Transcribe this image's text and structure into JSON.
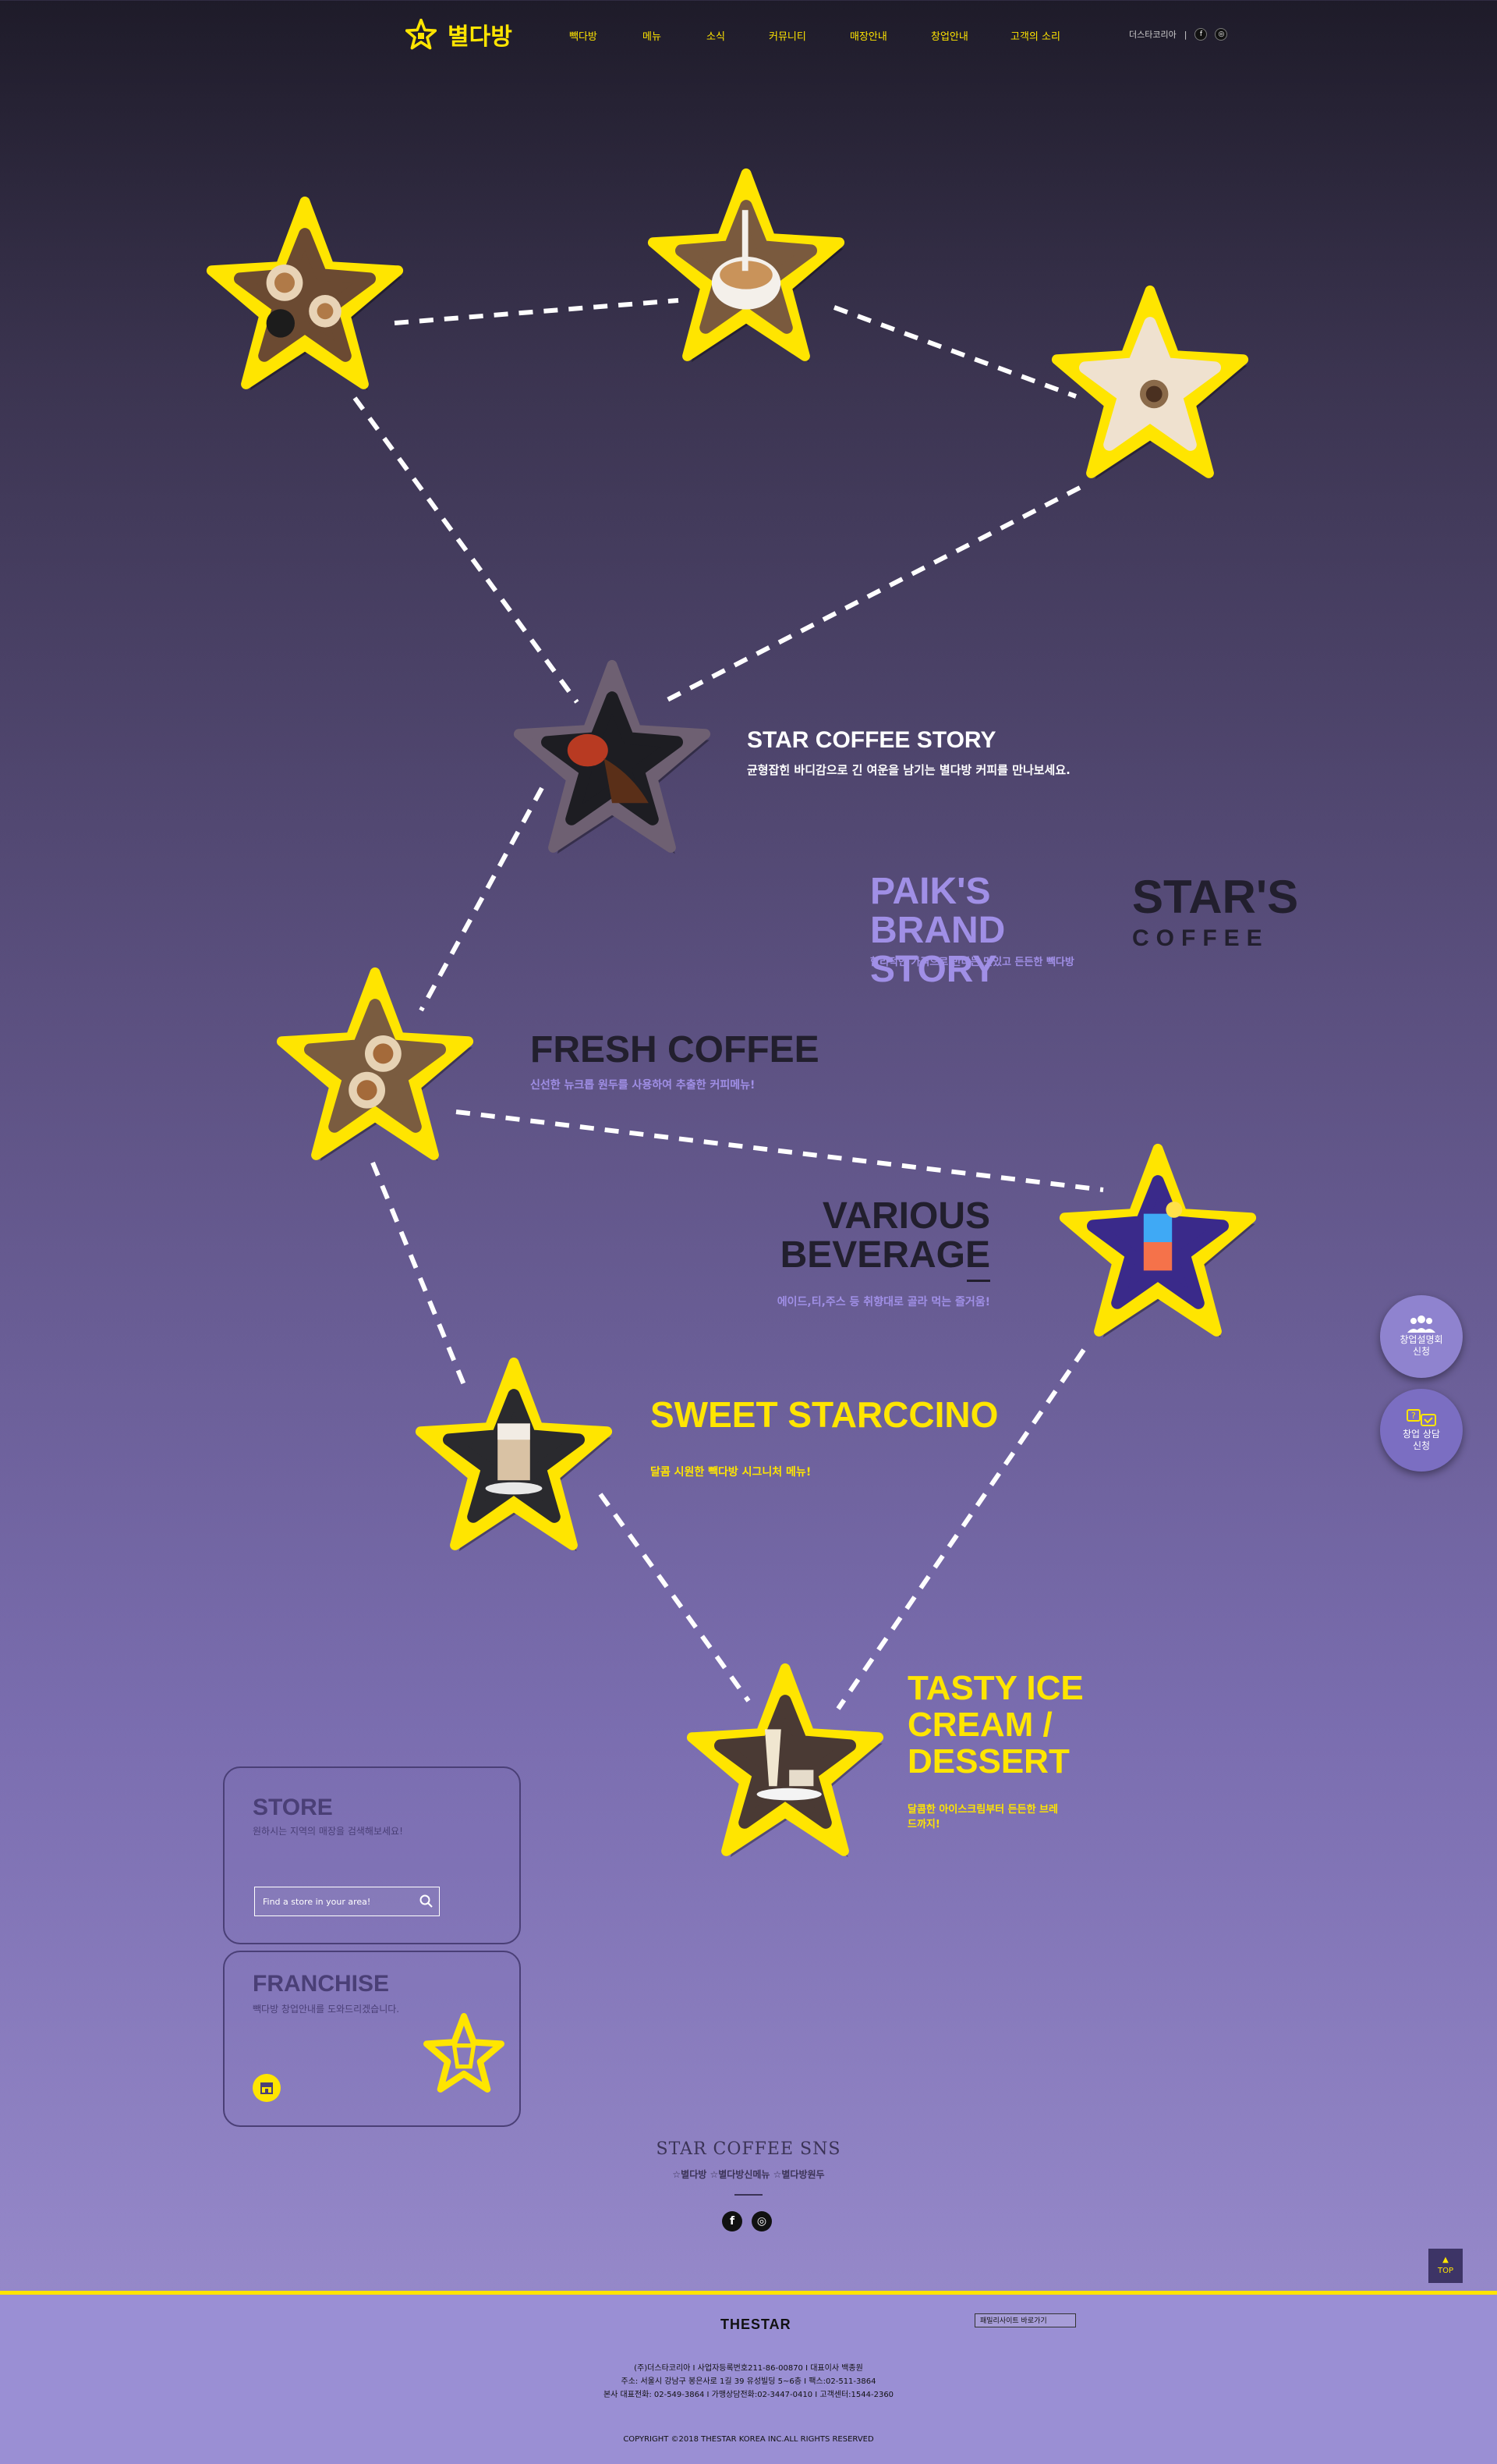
{
  "header": {
    "logo_text": "별다방",
    "nav": [
      "빽다방",
      "메뉴",
      "소식",
      "커뮤니티",
      "매장안내",
      "창업안내",
      "고객의 소리"
    ],
    "util_link": "더스타코리아",
    "util_sep": "|",
    "facebook_glyph": "f",
    "instagram_glyph": "◎"
  },
  "sections": {
    "story": {
      "title": "STAR COFFEE STORY",
      "subtitle": "균형잡힌 바디감으로 긴 여운을 남기는 별다방 커피를 만나보세요."
    },
    "brand": {
      "title": "PAIK'S BRAND STORY",
      "subtitle": "합리적인 가격으로 만나는 맛있고 든든한 빽다방",
      "logo_big": "STAR'S",
      "logo_small": "COFFEE"
    },
    "fresh": {
      "title": "FRESH COFFEE",
      "subtitle": "신선한 뉴크롭 원두를 사용하여 추출한 커피메뉴!"
    },
    "beverage": {
      "title": "VARIOUS BEVERAGE",
      "subtitle": "에이드,티,주스 등 취향대로 골라 먹는 즐거움!"
    },
    "sweet": {
      "title": "SWEET STARCCINO",
      "subtitle": "달콤 시원한 빽다방 시그니처 메뉴!"
    },
    "tasty": {
      "title": "TASTY ICE CREAM / DESSERT",
      "subtitle": "달콤한 아이스크림부터 든든한 브레드까지!"
    }
  },
  "side_buttons": {
    "info_session": "창업설명회 신청",
    "consult": "창업 상담 신청"
  },
  "store": {
    "title": "STORE",
    "subtitle": "원하시는 지역의 매장을 검색해보세요!",
    "search_placeholder": "Find a store in your area!"
  },
  "franchise": {
    "title": "FRANCHISE",
    "subtitle": "빽다방 창업안내를 도와드리겠습니다."
  },
  "sns": {
    "title": "STAR COFFEE SNS",
    "tags": "☆별다방 ☆별다방신메뉴 ☆별다방원두",
    "facebook": "f",
    "instagram": "◎"
  },
  "top_button": {
    "arrow": "▲",
    "label": "TOP"
  },
  "footer": {
    "brand": "THESTAR",
    "family_site": "패밀리사이트 바로가기",
    "info_line1": "(주)더스타코리아   I   사업자등록번호211-86-00870   I   대표이사 백종원",
    "info_line2": "주소: 서울시 강남구 봉은사로 1길 39 유성빌딩 5~6층   I   팩스:02-511-3864",
    "info_line3": "본사 대표전화: 02-549-3864   I   가맹상담전화:02-3447-0410   I   고객센터:1544-2360",
    "copyright": "COPYRIGHT ©2018 THESTAR KOREA INC.ALL RIGHTS RESERVED"
  },
  "colors": {
    "accent": "#ffe500",
    "purple": "#a08fe6",
    "dark": "#221f2e"
  }
}
